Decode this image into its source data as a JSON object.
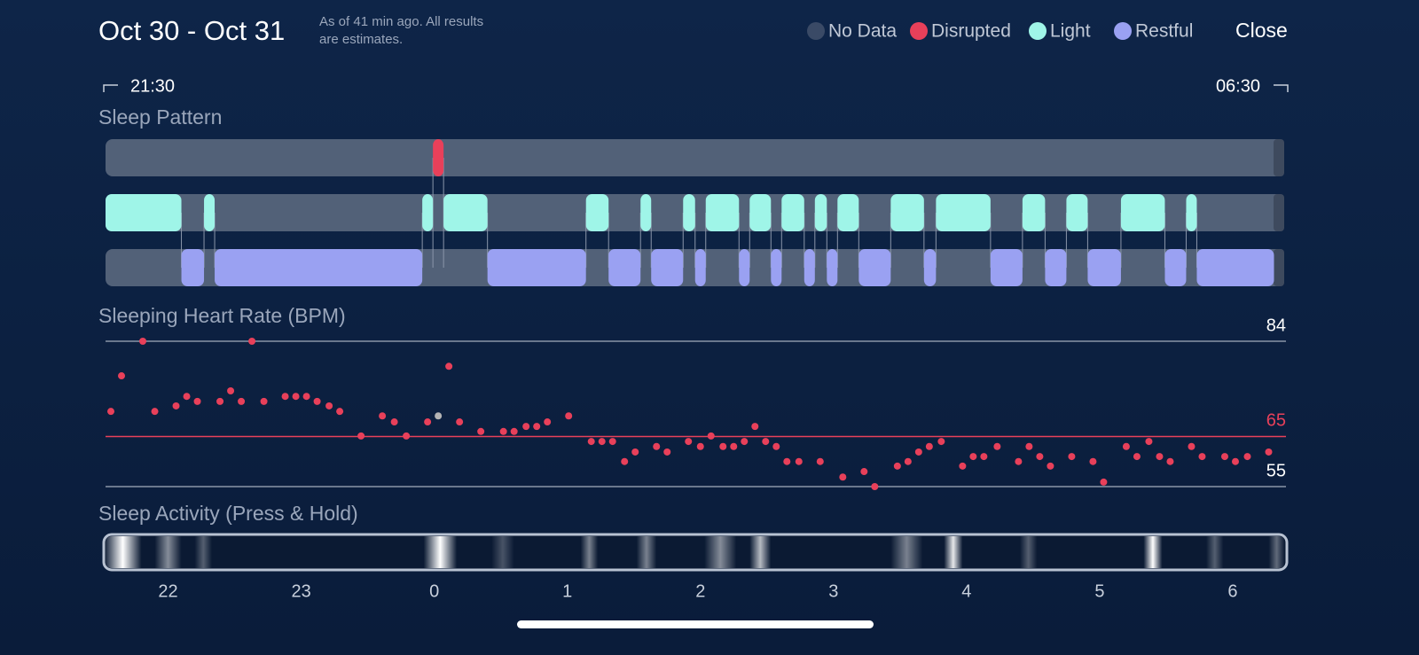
{
  "header": {
    "title": "Oct 30 - Oct 31",
    "note": [
      "As of 41 min ago. All results",
      "are estimates."
    ],
    "close": "Close"
  },
  "legend": {
    "items": [
      {
        "label": "No Data",
        "color": "#3a4a66"
      },
      {
        "label": "Disrupted",
        "color": "#e8405a"
      },
      {
        "label": "Light",
        "color": "#9ff5e8"
      },
      {
        "label": "Restful",
        "color": "#9aa1f2"
      }
    ]
  },
  "range": {
    "start": "21:30",
    "end": "06:30"
  },
  "xaxis": {
    "xlim": [
      -2.47,
      6.4
    ],
    "xticks": [
      {
        "value": -2,
        "label": "22"
      },
      {
        "value": -1,
        "label": "23"
      },
      0,
      1,
      2,
      3,
      4,
      5,
      6
    ]
  },
  "sleep_pattern": {
    "title": "Sleep Pattern",
    "rows": [
      {
        "color": "#e8405a",
        "segments": [
          {
            "start": -0.01,
            "end": 0.07
          }
        ]
      },
      {
        "color": "#9ff5e8",
        "segments": [
          {
            "start": -2.47,
            "end": -1.9
          },
          {
            "start": -1.73,
            "end": -1.65
          },
          {
            "start": -0.09,
            "end": -0.01
          },
          {
            "start": 0.07,
            "end": 0.4
          },
          {
            "start": 1.14,
            "end": 1.31
          },
          {
            "start": 1.55,
            "end": 1.63
          },
          {
            "start": 1.87,
            "end": 1.96
          },
          {
            "start": 2.04,
            "end": 2.29
          },
          {
            "start": 2.37,
            "end": 2.53
          },
          {
            "start": 2.61,
            "end": 2.78
          },
          {
            "start": 2.86,
            "end": 2.95
          },
          {
            "start": 3.03,
            "end": 3.19
          },
          {
            "start": 3.43,
            "end": 3.68
          },
          {
            "start": 3.77,
            "end": 4.18
          },
          {
            "start": 4.42,
            "end": 4.59
          },
          {
            "start": 4.75,
            "end": 4.91
          },
          {
            "start": 5.16,
            "end": 5.49
          },
          {
            "start": 5.65,
            "end": 5.73
          }
        ]
      },
      {
        "color": "#9aa1f2",
        "segments": [
          {
            "start": -1.9,
            "end": -1.73
          },
          {
            "start": -1.65,
            "end": -0.09
          },
          {
            "start": 0.4,
            "end": 1.14
          },
          {
            "start": 1.31,
            "end": 1.55
          },
          {
            "start": 1.63,
            "end": 1.87
          },
          {
            "start": 1.96,
            "end": 2.04
          },
          {
            "start": 2.29,
            "end": 2.37
          },
          {
            "start": 2.53,
            "end": 2.61
          },
          {
            "start": 2.78,
            "end": 2.86
          },
          {
            "start": 2.95,
            "end": 3.03
          },
          {
            "start": 3.19,
            "end": 3.43
          },
          {
            "start": 3.68,
            "end": 3.77
          },
          {
            "start": 4.18,
            "end": 4.42
          },
          {
            "start": 4.59,
            "end": 4.75
          },
          {
            "start": 4.91,
            "end": 5.16
          },
          {
            "start": 5.49,
            "end": 5.65
          },
          {
            "start": 5.73,
            "end": 6.31
          }
        ]
      }
    ]
  },
  "chart_data": {
    "type": "scatter",
    "title": "Sleeping Heart Rate (BPM)",
    "ylim": [
      55,
      84
    ],
    "yticks": [
      55,
      84
    ],
    "reference_line": {
      "value": 65,
      "color": "#e8405a"
    },
    "series": [
      {
        "color": "#e8405a",
        "x": [
          -2.43,
          -2.35,
          -2.19,
          -2.1,
          -1.94,
          -1.86,
          -1.78,
          -1.61,
          -1.53,
          -1.45,
          -1.37,
          -1.28,
          -1.12,
          -1.04,
          -0.96,
          -0.88,
          -0.79,
          -0.71,
          -0.55,
          -0.39,
          -0.3,
          -0.21,
          -0.05,
          0.11,
          0.19,
          0.35,
          0.52,
          0.6,
          0.69,
          0.77,
          0.85,
          1.01,
          1.18,
          1.26,
          1.34,
          1.43,
          1.51,
          1.67,
          1.75,
          1.91,
          2.0,
          2.08,
          2.17,
          2.25,
          2.33,
          2.41,
          2.49,
          2.57,
          2.65,
          2.74,
          2.9,
          3.07,
          3.23,
          3.31,
          3.48,
          3.56,
          3.64,
          3.72,
          3.81,
          3.97,
          4.05,
          4.13,
          4.23,
          4.39,
          4.47,
          4.55,
          4.63,
          4.79,
          4.95,
          5.03,
          5.2,
          5.28,
          5.37,
          5.45,
          5.53,
          5.69,
          5.77,
          5.94,
          6.02,
          6.11,
          6.27
        ],
        "values": [
          70,
          77.1,
          84,
          70,
          71.1,
          73,
          72,
          72,
          74.1,
          72,
          84,
          72,
          73,
          73,
          73,
          72,
          71.1,
          70,
          65.1,
          69.1,
          67.9,
          65.1,
          67.9,
          79,
          67.9,
          66,
          66,
          66,
          67,
          67,
          67.9,
          69.1,
          64,
          64,
          64,
          60,
          61.9,
          63,
          61.9,
          64,
          63,
          65.1,
          63,
          63,
          64,
          67,
          64,
          63,
          60,
          60,
          60,
          56.9,
          58,
          55,
          59.1,
          60,
          61.9,
          63,
          64,
          59.1,
          61,
          61,
          63,
          60,
          63,
          61,
          59.1,
          61,
          60,
          55.9,
          63,
          61,
          64,
          61,
          60,
          63,
          61,
          61,
          60,
          61,
          61.9
        ]
      },
      {
        "color": "#b4b4b4",
        "x": [
          0.03
        ],
        "values": [
          69.1
        ]
      }
    ]
  },
  "sleep_activity": {
    "title": "Sleep Activity (Press & Hold)",
    "peaks": [
      {
        "start": -2.48,
        "end": -2.2,
        "level": 1
      },
      {
        "start": -2.1,
        "end": -1.9,
        "level": 0.5
      },
      {
        "start": -1.8,
        "end": -1.67,
        "level": 0.3
      },
      {
        "start": -0.08,
        "end": 0.17,
        "level": 1
      },
      {
        "start": 0.43,
        "end": 0.6,
        "level": 0.25
      },
      {
        "start": 1.1,
        "end": 1.23,
        "level": 0.45
      },
      {
        "start": 1.52,
        "end": 1.67,
        "level": 0.45
      },
      {
        "start": 2.03,
        "end": 2.27,
        "level": 0.5
      },
      {
        "start": 2.37,
        "end": 2.53,
        "level": 0.7
      },
      {
        "start": 3.43,
        "end": 3.67,
        "level": 0.45
      },
      {
        "start": 3.83,
        "end": 3.97,
        "level": 0.9
      },
      {
        "start": 4.4,
        "end": 4.53,
        "level": 0.3
      },
      {
        "start": 5.33,
        "end": 5.47,
        "level": 1
      },
      {
        "start": 5.8,
        "end": 5.93,
        "level": 0.3
      },
      {
        "start": 6.27,
        "end": 6.39,
        "level": 0.35
      }
    ]
  }
}
